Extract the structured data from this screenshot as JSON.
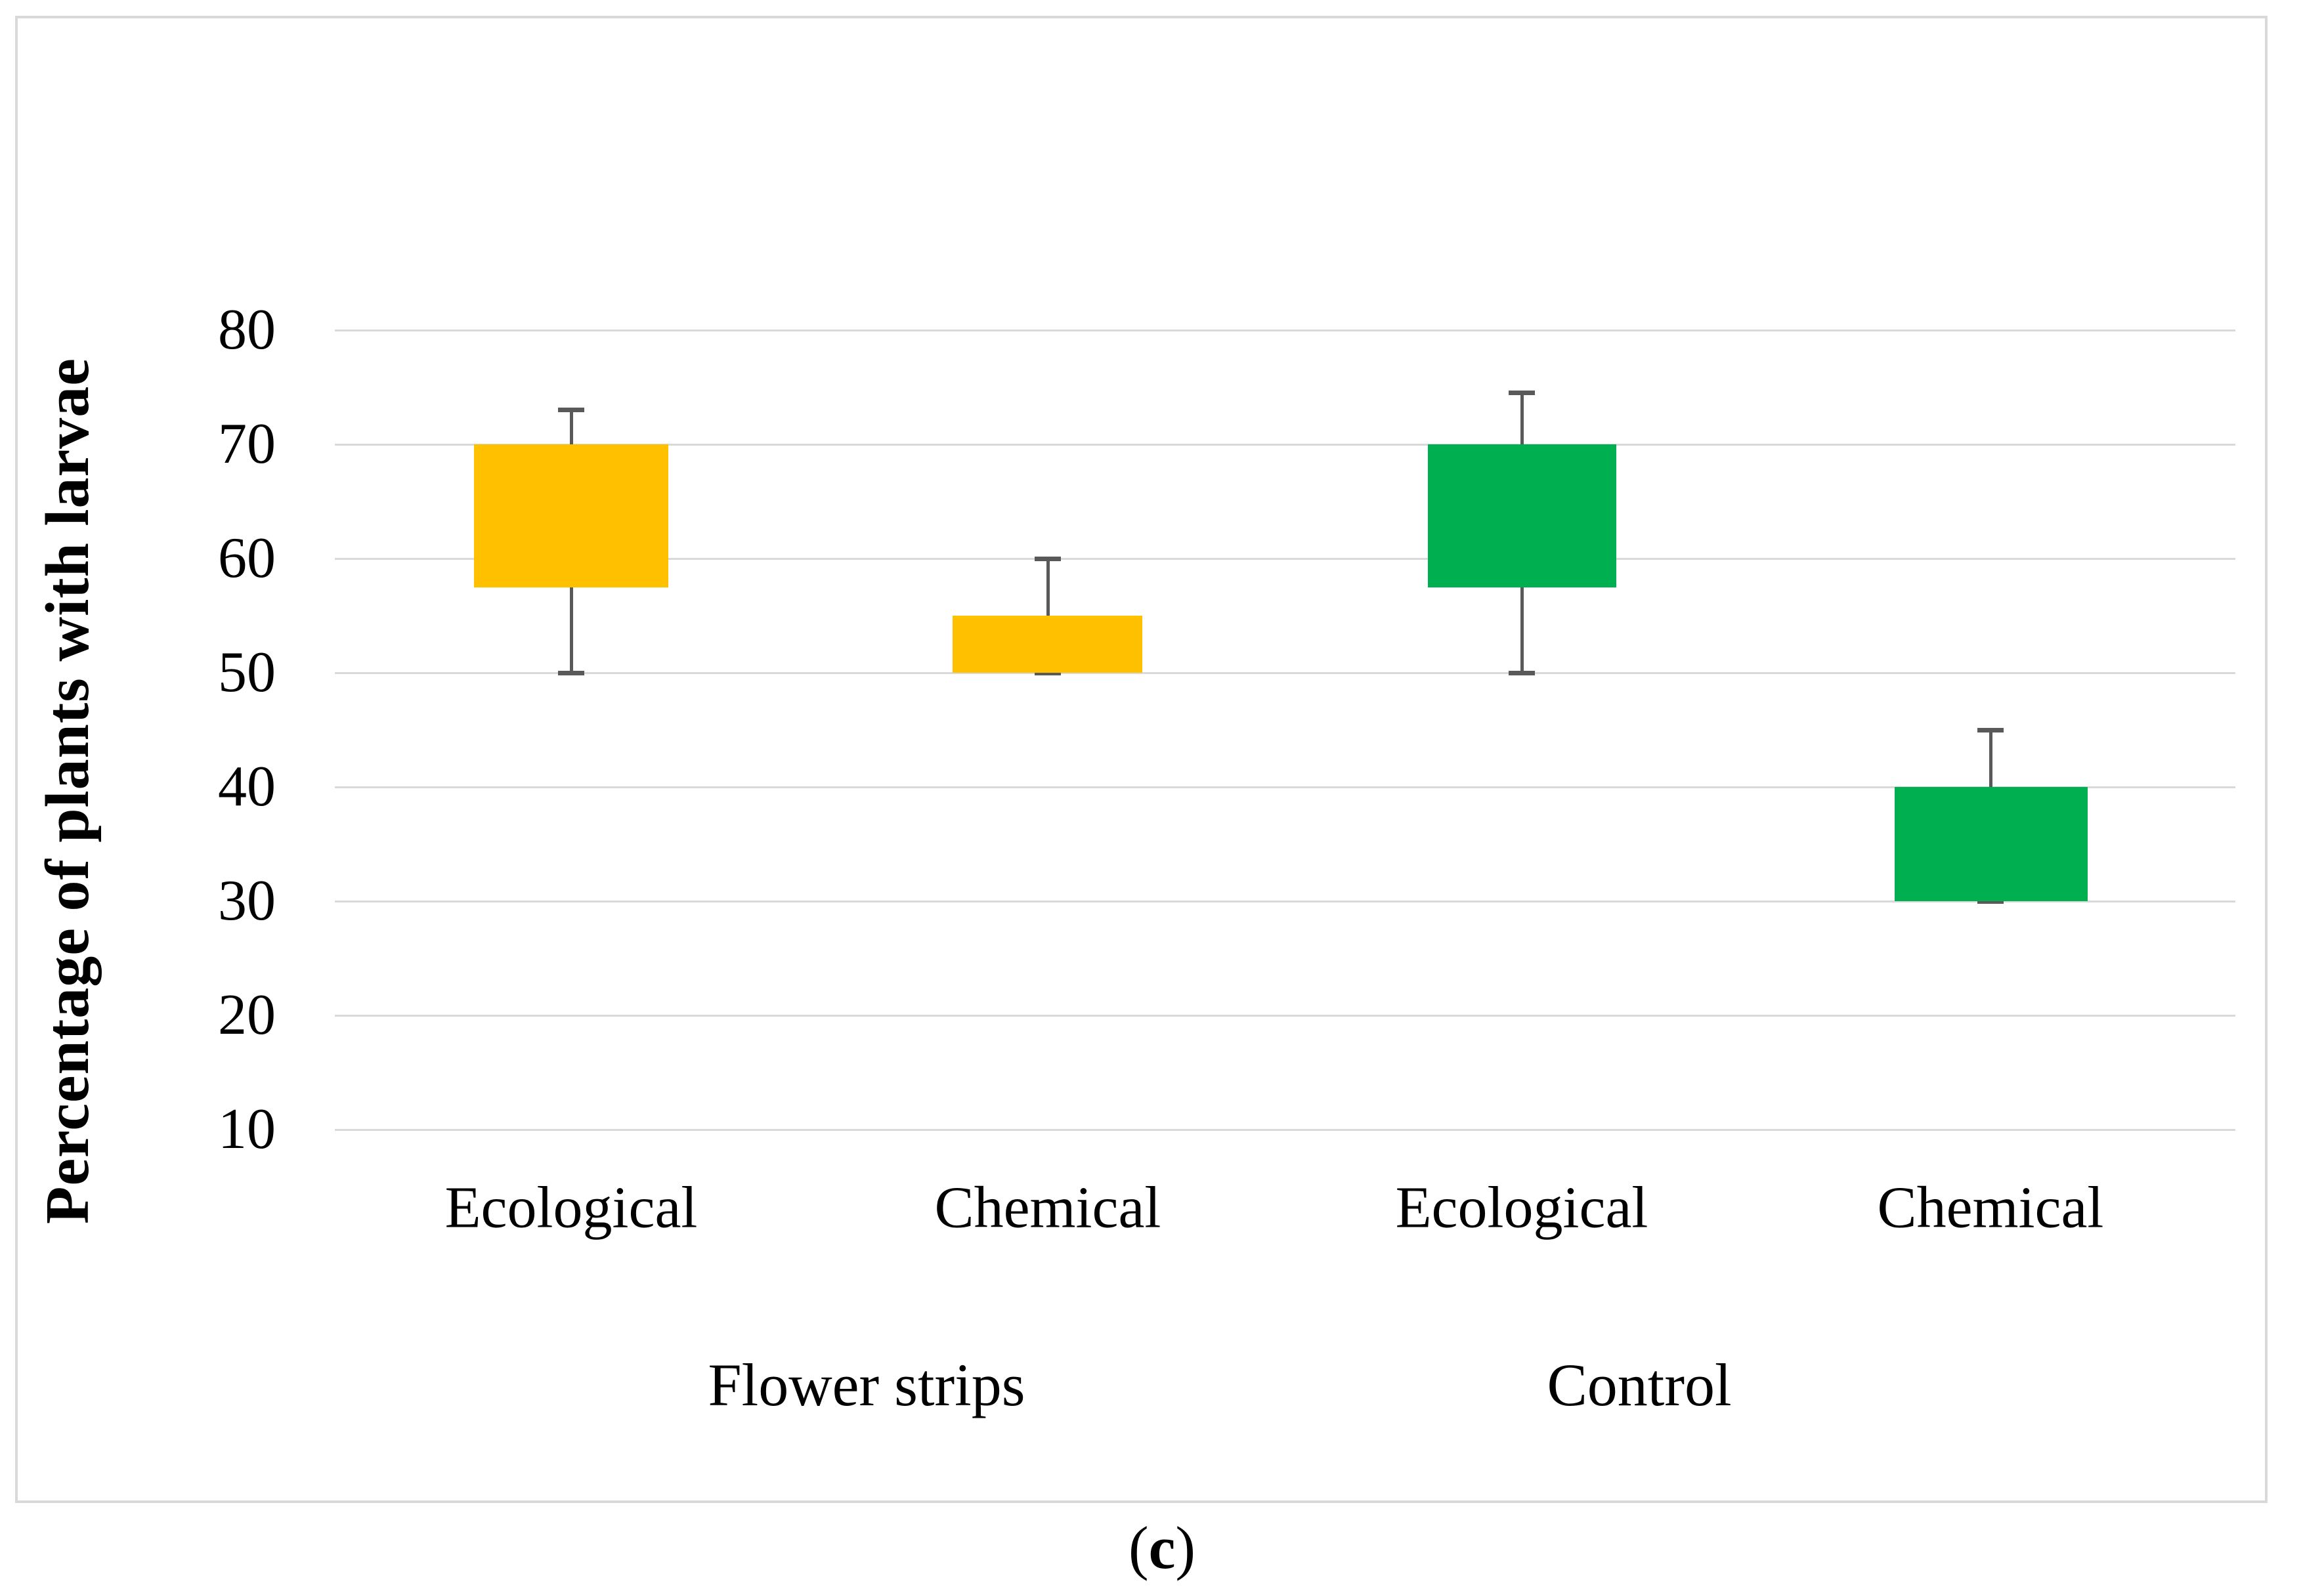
{
  "figure": {
    "caption": {
      "open": "(",
      "letter": "c",
      "close": ")"
    }
  },
  "chart_data": {
    "type": "box",
    "title": "",
    "xlabel": "",
    "ylabel": "Percentage of plants with larvae",
    "yticks": [
      80,
      70,
      60,
      50,
      40,
      30,
      20,
      10
    ],
    "ylim_shown": [
      10,
      80
    ],
    "grid": true,
    "legend": "none",
    "group_labels": [
      "Flower strips",
      "Control"
    ],
    "colors": {
      "flower_strips": "#FFC000",
      "control": "#00B050",
      "error_bar": "#595959",
      "gridline": "#D9D9D9",
      "border": "#D9D9D9"
    },
    "boxes": [
      {
        "group": "Flower strips",
        "treatment": "Ecological",
        "box_low": 57.5,
        "box_high": 70,
        "whisker_low": 50,
        "whisker_high": 73,
        "color_key": "flower_strips"
      },
      {
        "group": "Flower strips",
        "treatment": "Chemical",
        "box_low": 50,
        "box_high": 55,
        "whisker_low": 50,
        "whisker_high": 60,
        "color_key": "flower_strips"
      },
      {
        "group": "Control",
        "treatment": "Ecological",
        "box_low": 57.5,
        "box_high": 70,
        "whisker_low": 50,
        "whisker_high": 74.5,
        "color_key": "control"
      },
      {
        "group": "Control",
        "treatment": "Chemical",
        "box_low": 30,
        "box_high": 40,
        "whisker_low": 30,
        "whisker_high": 45,
        "color_key": "control"
      }
    ]
  }
}
